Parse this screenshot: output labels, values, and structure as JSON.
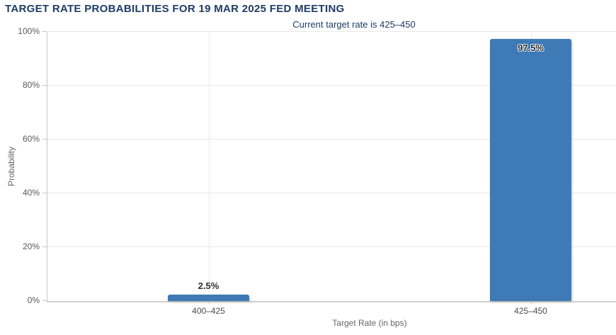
{
  "chart_data": {
    "type": "bar",
    "title": "TARGET RATE PROBABILITIES FOR 19 MAR 2025 FED MEETING",
    "subtitle": "Current target rate is 425–450",
    "xlabel": "Target Rate (in bps)",
    "ylabel": "Probability",
    "categories": [
      "400–425",
      "425–450"
    ],
    "values": [
      2.5,
      97.5
    ],
    "data_labels": [
      "2.5%",
      "97.5%"
    ],
    "ylim": [
      0,
      100
    ],
    "yticks": [
      0,
      20,
      40,
      60,
      80,
      100
    ],
    "ytick_labels": [
      "0%",
      "20%",
      "40%",
      "60%",
      "80%",
      "100%"
    ],
    "grid": "on",
    "legend": "none",
    "bar_color": "#3d7ab6",
    "title_color": "#1f3b66",
    "subtitle_color": "#1f3b66",
    "gridline_color": "#e8e8e8",
    "axis_line_color": "#c6c6c6",
    "tick_label_color": "#595959",
    "axis_title_color": "#666666"
  }
}
